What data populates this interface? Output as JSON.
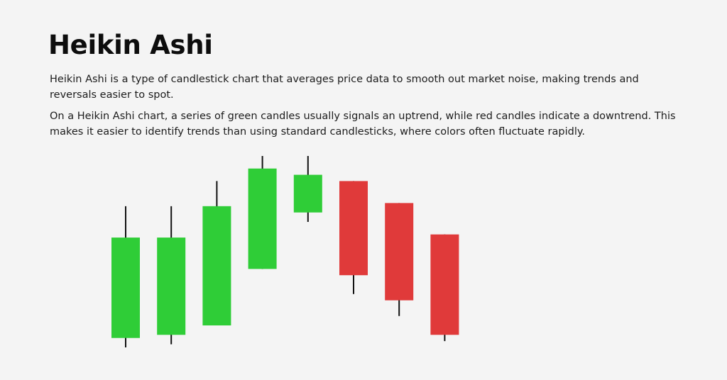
{
  "title": "Heikin Ashi",
  "paragraphs": [
    "Heikin Ashi is a type of candlestick chart that averages price data to smooth out market noise, making trends and reversals easier to spot.",
    "On a Heikin Ashi chart, a series of green candles usually signals an uptrend, while red candles indicate a downtrend. This makes it easier to identify trends than using standard candlesticks, where colors often fluctuate rapidly."
  ],
  "colors": {
    "up": "#2fcd37",
    "down": "#e03a3a",
    "wick": "#111111"
  },
  "chart_data": {
    "type": "candlestick",
    "candles": [
      {
        "direction": "up",
        "high": 100,
        "top": 90,
        "bottom": 58,
        "low": 55
      },
      {
        "direction": "up",
        "high": 100,
        "top": 90,
        "bottom": 59,
        "low": 56
      },
      {
        "direction": "up",
        "high": 108,
        "top": 100,
        "bottom": 62,
        "low": 62
      },
      {
        "direction": "up",
        "high": 116,
        "top": 112,
        "bottom": 80,
        "low": 80
      },
      {
        "direction": "up",
        "high": 116,
        "top": 110,
        "bottom": 98,
        "low": 95
      },
      {
        "direction": "down",
        "high": 108,
        "top": 108,
        "bottom": 78,
        "low": 72
      },
      {
        "direction": "down",
        "high": 101,
        "top": 101,
        "bottom": 70,
        "low": 65
      },
      {
        "direction": "down",
        "high": 91,
        "top": 91,
        "bottom": 59,
        "low": 57
      }
    ]
  }
}
